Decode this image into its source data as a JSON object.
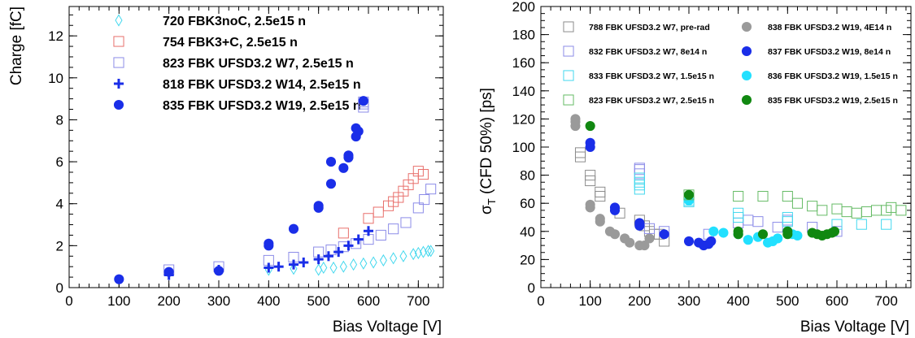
{
  "chart_data": [
    {
      "type": "scatter",
      "xlabel": "Bias Voltage [V]",
      "ylabel": "Charge [fC]",
      "xlim": [
        0,
        750
      ],
      "ylim": [
        0,
        13.4
      ],
      "xticks": [
        "0",
        "100",
        "200",
        "300",
        "400",
        "500",
        "600",
        "700"
      ],
      "yticks": [
        "0",
        "2",
        "4",
        "6",
        "8",
        "10",
        "12"
      ],
      "legend_placement": "top-left",
      "series": [
        {
          "name": "720 FBK3noC, 2.5e15 n",
          "color": "#44d8ee",
          "marker": "diamond-open",
          "points": [
            [
              400,
              0.85
            ],
            [
              450,
              0.9
            ],
            [
              500,
              0.85
            ],
            [
              510,
              0.95
            ],
            [
              530,
              0.95
            ],
            [
              550,
              1.0
            ],
            [
              570,
              1.1
            ],
            [
              590,
              1.15
            ],
            [
              610,
              1.2
            ],
            [
              630,
              1.3
            ],
            [
              650,
              1.4
            ],
            [
              670,
              1.5
            ],
            [
              690,
              1.6
            ],
            [
              700,
              1.65
            ],
            [
              710,
              1.7
            ],
            [
              720,
              1.75
            ],
            [
              725,
              1.75
            ]
          ]
        },
        {
          "name": "754 FBK3+C, 2.5e15 n",
          "color": "#e8706c",
          "marker": "square-open",
          "points": [
            [
              550,
              2.6
            ],
            [
              600,
              3.3
            ],
            [
              620,
              3.6
            ],
            [
              640,
              3.9
            ],
            [
              650,
              4.1
            ],
            [
              660,
              4.3
            ],
            [
              670,
              4.6
            ],
            [
              680,
              4.9
            ],
            [
              690,
              5.2
            ],
            [
              700,
              5.55
            ],
            [
              710,
              5.4
            ]
          ]
        },
        {
          "name": "823 FBK UFSD3.2 W7, 2.5e15 n",
          "color": "#8c8ce8",
          "marker": "square-open",
          "points": [
            [
              200,
              0.85
            ],
            [
              300,
              1.0
            ],
            [
              400,
              1.3
            ],
            [
              450,
              1.45
            ],
            [
              500,
              1.7
            ],
            [
              525,
              1.8
            ],
            [
              550,
              1.95
            ],
            [
              575,
              2.1
            ],
            [
              600,
              2.3
            ],
            [
              625,
              2.5
            ],
            [
              650,
              2.8
            ],
            [
              675,
              3.1
            ],
            [
              700,
              3.8
            ],
            [
              712,
              4.2
            ],
            [
              725,
              4.7
            ],
            [
              590,
              8.6
            ],
            [
              590,
              8.75
            ],
            [
              590,
              8.85
            ]
          ]
        },
        {
          "name": "818 FBK UFSD3.2 W14, 2.5e15 n",
          "color": "#1a2ee8",
          "marker": "plus",
          "points": [
            [
              200,
              0.6
            ],
            [
              300,
              0.85
            ],
            [
              400,
              0.95
            ],
            [
              420,
              1.0
            ],
            [
              450,
              1.1
            ],
            [
              470,
              1.2
            ],
            [
              500,
              1.35
            ],
            [
              520,
              1.5
            ],
            [
              540,
              1.7
            ],
            [
              560,
              2.0
            ],
            [
              580,
              2.3
            ],
            [
              600,
              2.7
            ]
          ]
        },
        {
          "name": "835 FBK UFSD3.2 W19, 2.5e15 n",
          "color": "#1a2ee8",
          "marker": "circle",
          "points": [
            [
              100,
              0.4
            ],
            [
              200,
              0.75
            ],
            [
              300,
              0.8
            ],
            [
              400,
              2.0
            ],
            [
              400,
              2.1
            ],
            [
              450,
              2.8
            ],
            [
              500,
              3.8
            ],
            [
              500,
              3.9
            ],
            [
              525,
              4.95
            ],
            [
              525,
              6.0
            ],
            [
              550,
              5.7
            ],
            [
              560,
              6.2
            ],
            [
              560,
              6.3
            ],
            [
              575,
              7.2
            ],
            [
              575,
              7.6
            ],
            [
              580,
              7.45
            ],
            [
              590,
              8.9
            ]
          ]
        }
      ]
    },
    {
      "type": "scatter",
      "xlabel": "Bias Voltage [V]",
      "ylabel_main": "σ",
      "ylabel_sub": "T",
      "ylabel_rest": " (CFD 50%) [ps]",
      "xlim": [
        0,
        750
      ],
      "ylim": [
        0,
        200
      ],
      "xticks": [
        "0",
        "100",
        "200",
        "300",
        "400",
        "500",
        "600",
        "700"
      ],
      "yticks": [
        "0",
        "20",
        "40",
        "60",
        "80",
        "100",
        "120",
        "140",
        "160",
        "180",
        "200"
      ],
      "legend_placement": "top",
      "series": [
        {
          "name": "788 FBK UFSD3.2 W7, pre-rad",
          "color": "#8c8c8c",
          "marker": "square-open",
          "points": [
            [
              80,
              93
            ],
            [
              80,
              96
            ],
            [
              100,
              76
            ],
            [
              100,
              80
            ],
            [
              120,
              65
            ],
            [
              120,
              68
            ],
            [
              160,
              53
            ],
            [
              200,
              48
            ],
            [
              210,
              44
            ],
            [
              220,
              40
            ],
            [
              230,
              38
            ],
            [
              240,
              38
            ],
            [
              250,
              33
            ]
          ]
        },
        {
          "name": "838 FBK UFSD3.2 W19, 4E14 n",
          "color": "#9a9a9a",
          "marker": "circle",
          "points": [
            [
              70,
              115
            ],
            [
              70,
              118
            ],
            [
              70,
              120
            ],
            [
              100,
              57
            ],
            [
              100,
              59
            ],
            [
              120,
              47
            ],
            [
              120,
              49
            ],
            [
              140,
              40
            ],
            [
              150,
              38
            ],
            [
              170,
              35
            ],
            [
              180,
              32
            ],
            [
              200,
              30
            ],
            [
              210,
              30
            ],
            [
              220,
              35
            ]
          ]
        },
        {
          "name": "832 FBK UFSD3.2 W7, 8e14 n",
          "color": "#8c8ce8",
          "marker": "square-open",
          "points": [
            [
              200,
              81
            ],
            [
              200,
              84
            ],
            [
              200,
              85
            ],
            [
              400,
              46
            ],
            [
              420,
              48
            ],
            [
              440,
              47
            ],
            [
              480,
              43
            ],
            [
              500,
              48
            ],
            [
              550,
              43
            ],
            [
              600,
              40
            ],
            [
              220,
              42
            ],
            [
              250,
              40
            ],
            [
              340,
              38
            ]
          ]
        },
        {
          "name": "837 FBK UFSD3.2 W19, 8e14 n",
          "color": "#1a2ee8",
          "marker": "circle",
          "points": [
            [
              100,
              100
            ],
            [
              100,
              103
            ],
            [
              150,
              55
            ],
            [
              150,
              57
            ],
            [
              200,
              44
            ],
            [
              200,
              46
            ],
            [
              250,
              38
            ],
            [
              300,
              33
            ],
            [
              320,
              32
            ],
            [
              330,
              30
            ],
            [
              340,
              31
            ],
            [
              345,
              33
            ]
          ]
        },
        {
          "name": "833 FBK UFSD3.2 W7, 1.5e15 n",
          "color": "#44d8ee",
          "marker": "square-open",
          "points": [
            [
              200,
              70
            ],
            [
              200,
              73
            ],
            [
              200,
              75
            ],
            [
              200,
              78
            ],
            [
              300,
              61
            ],
            [
              300,
              62
            ],
            [
              400,
              50
            ],
            [
              400,
              53
            ],
            [
              500,
              47
            ],
            [
              500,
              50
            ],
            [
              600,
              45
            ],
            [
              650,
              45
            ],
            [
              700,
              45
            ]
          ]
        },
        {
          "name": "836 FBK UFSD3.2 W19, 1.5e15 n",
          "color": "#22e0ff",
          "marker": "circle",
          "points": [
            [
              300,
              62
            ],
            [
              350,
              40
            ],
            [
              370,
              39
            ],
            [
              400,
              38
            ],
            [
              420,
              34
            ],
            [
              440,
              36
            ],
            [
              460,
              32
            ],
            [
              470,
              33
            ],
            [
              480,
              35
            ],
            [
              500,
              40
            ],
            [
              510,
              38
            ],
            [
              520,
              37
            ]
          ]
        },
        {
          "name": "823 FBK UFSD3.2 W7, 2.5e15 n",
          "color": "#66bb66",
          "marker": "square-open",
          "points": [
            [
              300,
              66
            ],
            [
              400,
              65
            ],
            [
              450,
              65
            ],
            [
              500,
              65
            ],
            [
              520,
              60
            ],
            [
              550,
              58
            ],
            [
              570,
              55
            ],
            [
              600,
              56
            ],
            [
              620,
              54
            ],
            [
              640,
              53
            ],
            [
              660,
              54
            ],
            [
              680,
              55
            ],
            [
              700,
              55
            ],
            [
              710,
              57
            ],
            [
              730,
              55
            ]
          ]
        },
        {
          "name": "835 FBK UFSD3.2 W19, 2.5e15 n",
          "color": "#118811",
          "marker": "circle",
          "points": [
            [
              100,
              115
            ],
            [
              300,
              66
            ],
            [
              400,
              38
            ],
            [
              400,
              40
            ],
            [
              450,
              38
            ],
            [
              500,
              38
            ],
            [
              500,
              40
            ],
            [
              550,
              39
            ],
            [
              560,
              38
            ],
            [
              570,
              37
            ],
            [
              580,
              38
            ],
            [
              590,
              39
            ],
            [
              595,
              40
            ]
          ]
        }
      ]
    }
  ]
}
